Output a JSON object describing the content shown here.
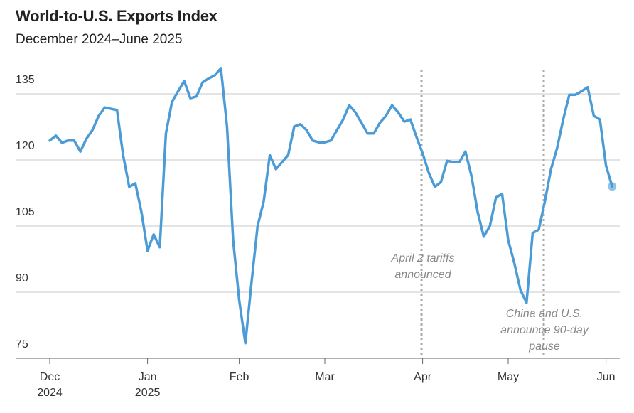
{
  "chart_data": {
    "type": "line",
    "title": "World-to-U.S. Exports Index",
    "subtitle": "December 2024–June 2025",
    "categories": [
      "Dec 2024",
      null,
      null,
      null,
      null,
      null,
      null,
      null,
      null,
      null,
      null,
      null,
      null,
      null,
      null,
      null,
      "Jan 2025",
      null,
      null,
      null,
      null,
      null,
      null,
      null,
      null,
      null,
      null,
      null,
      null,
      null,
      null,
      "Feb",
      null,
      null,
      null,
      null,
      null,
      null,
      null,
      null,
      null,
      null,
      null,
      null,
      null,
      "Mar",
      null,
      null,
      null,
      null,
      null,
      null,
      null,
      null,
      null,
      null,
      null,
      null,
      null,
      null,
      null,
      "Apr",
      null,
      null,
      null,
      null,
      null,
      null,
      null,
      null,
      null,
      null,
      null,
      null,
      null,
      "May",
      null,
      null,
      null,
      null,
      null,
      null,
      null,
      null,
      null,
      null,
      null,
      null,
      null,
      null,
      null,
      "Jun",
      null
    ],
    "values": [
      124.4,
      125.5,
      123.9,
      124.4,
      124.4,
      121.9,
      124.8,
      126.8,
      130,
      131.9,
      131.6,
      131.3,
      121.1,
      113.9,
      114.7,
      108.2,
      99.4,
      103.1,
      100.2,
      126,
      133.2,
      135.6,
      137.9,
      134,
      134.4,
      137.6,
      138.5,
      139.2,
      140.8,
      127.6,
      101.8,
      88.1,
      78.4,
      92.1,
      105,
      110.6,
      121.1,
      117.9,
      119.5,
      121.1,
      127.6,
      128.1,
      126.8,
      124.4,
      124,
      124,
      124.4,
      126.8,
      129.2,
      132.4,
      130.8,
      128.4,
      126,
      126,
      128.4,
      130,
      132.4,
      130.8,
      128.7,
      129.2,
      125.2,
      121.5,
      117.1,
      113.9,
      115,
      119.8,
      119.5,
      119.5,
      121.9,
      116.3,
      108.2,
      102.6,
      105,
      111.5,
      112.3,
      101.8,
      96.6,
      90.5,
      87.6,
      103.4,
      104.2,
      110.6,
      117.9,
      122.7,
      129.2,
      134.8,
      134.8,
      135.6,
      136.5,
      130,
      129.2,
      118.7,
      114
    ],
    "color": "#4a9bd6",
    "ylim": [
      75,
      142
    ],
    "yticks": [
      75,
      90,
      105,
      120,
      135
    ],
    "grid": true,
    "annotations": [
      "April 2 tariffs announced",
      "China and U.S. announce 90-day pause"
    ]
  }
}
